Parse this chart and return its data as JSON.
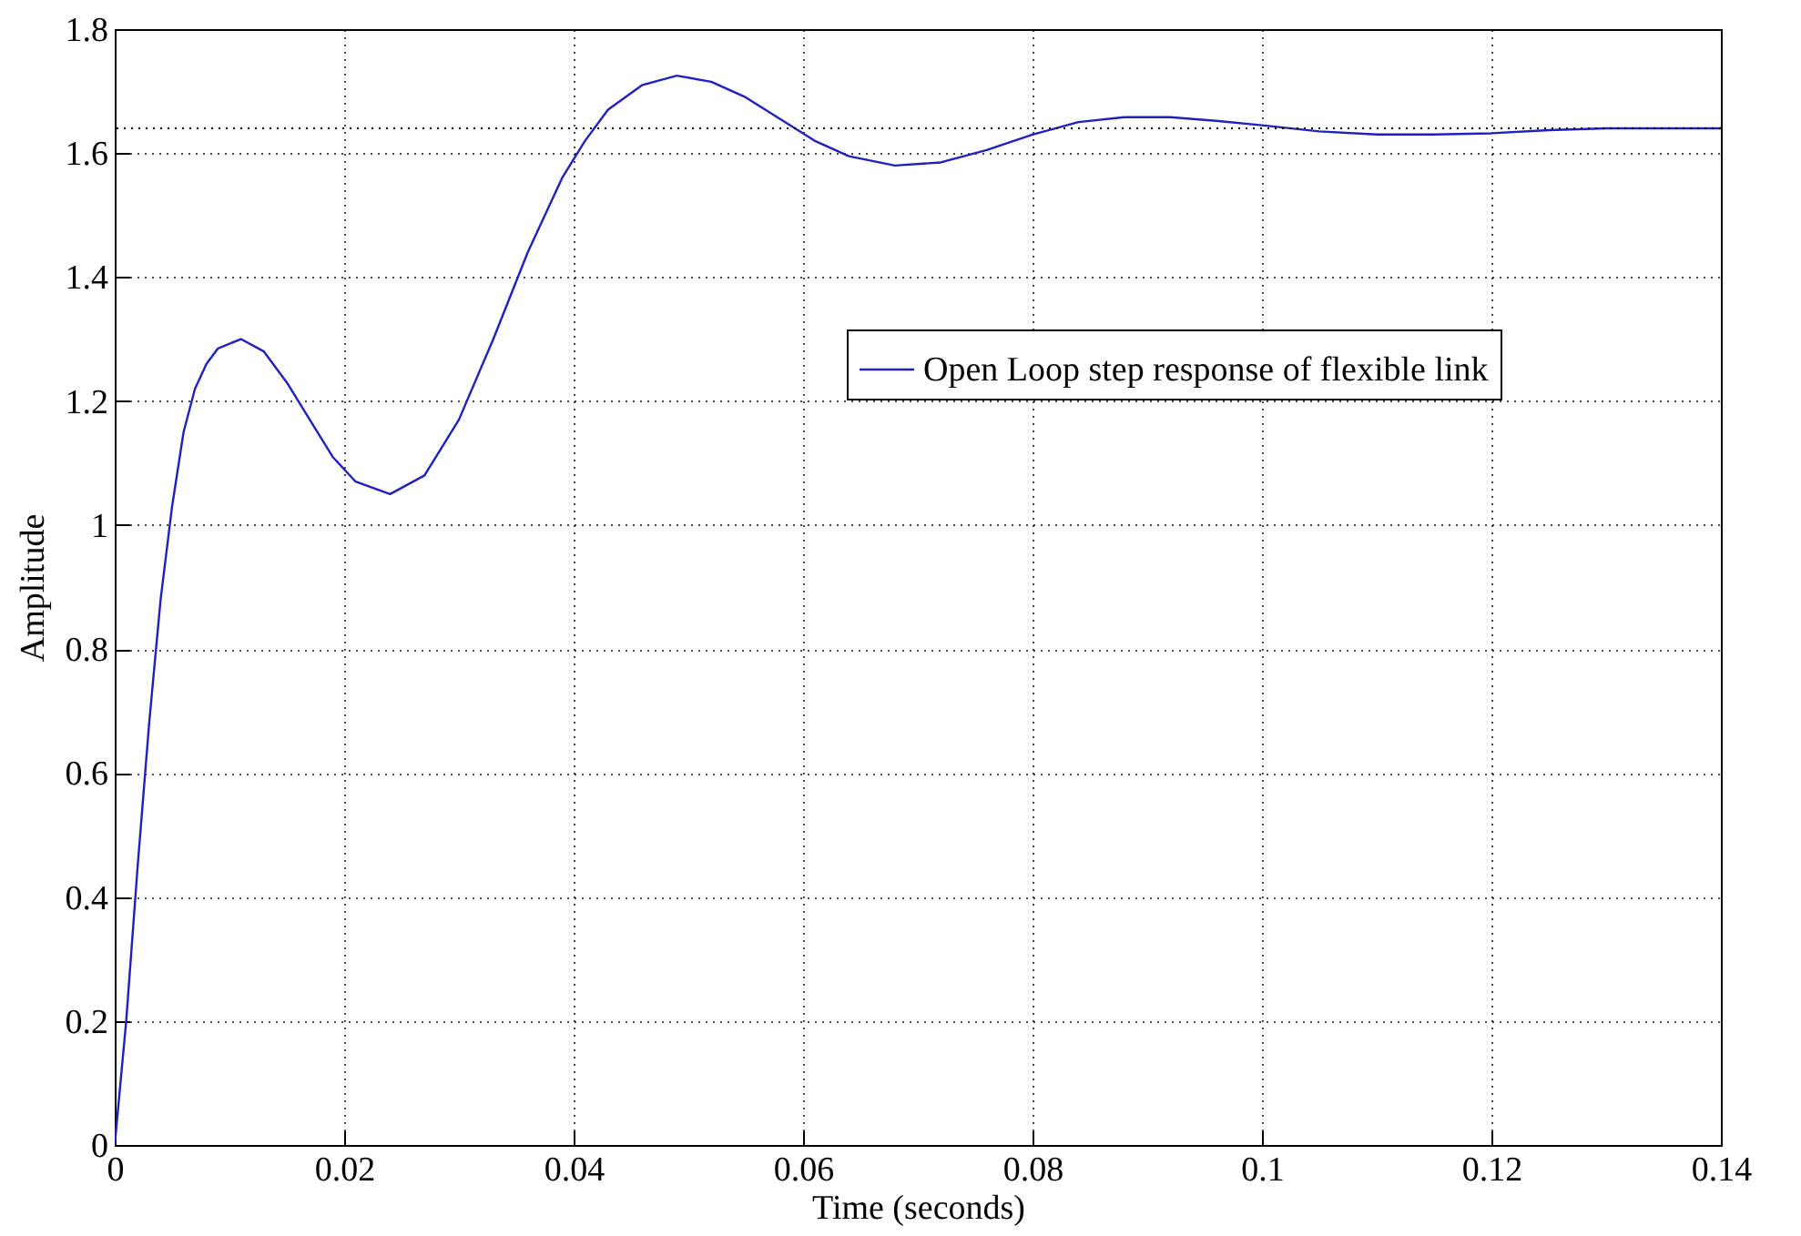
{
  "chart_data": {
    "type": "line",
    "xlabel": "Time (seconds)",
    "ylabel": "Amplitude",
    "x": [
      0,
      0.001,
      0.002,
      0.003,
      0.004,
      0.005,
      0.006,
      0.007,
      0.008,
      0.009,
      0.011,
      0.013,
      0.015,
      0.017,
      0.019,
      0.021,
      0.024,
      0.027,
      0.03,
      0.033,
      0.036,
      0.039,
      0.041,
      0.043,
      0.046,
      0.049,
      0.052,
      0.055,
      0.058,
      0.061,
      0.064,
      0.068,
      0.072,
      0.076,
      0.08,
      0.084,
      0.088,
      0.092,
      0.096,
      0.1,
      0.105,
      0.11,
      0.115,
      0.12,
      0.125,
      0.13,
      0.135,
      0.14
    ],
    "series": [
      {
        "name": "Open Loop step response of flexible link",
        "color": "#2020c0",
        "values": [
          0,
          0.2,
          0.45,
          0.68,
          0.88,
          1.03,
          1.15,
          1.22,
          1.26,
          1.285,
          1.3,
          1.28,
          1.23,
          1.17,
          1.11,
          1.07,
          1.05,
          1.08,
          1.17,
          1.3,
          1.44,
          1.56,
          1.62,
          1.67,
          1.71,
          1.725,
          1.715,
          1.69,
          1.655,
          1.62,
          1.595,
          1.58,
          1.585,
          1.605,
          1.63,
          1.65,
          1.658,
          1.658,
          1.652,
          1.645,
          1.635,
          1.63,
          1.63,
          1.632,
          1.637,
          1.64,
          1.64,
          1.64
        ]
      }
    ],
    "xlim": [
      0,
      0.14
    ],
    "xticks": [
      0,
      0.02,
      0.04,
      0.06,
      0.08,
      0.1,
      0.12,
      0.14
    ],
    "ylim": [
      0,
      1.8
    ],
    "yticks": [
      0,
      0.2,
      0.4,
      0.6,
      0.8,
      1,
      1.2,
      1.4,
      1.6,
      1.8
    ],
    "ref_lines": [
      {
        "axis": "y",
        "value": 1.64,
        "label": null,
        "color": "#000000",
        "line_style": "dotted"
      }
    ],
    "grid": true,
    "legend": "right",
    "line_style": "solid",
    "marker": "none"
  }
}
